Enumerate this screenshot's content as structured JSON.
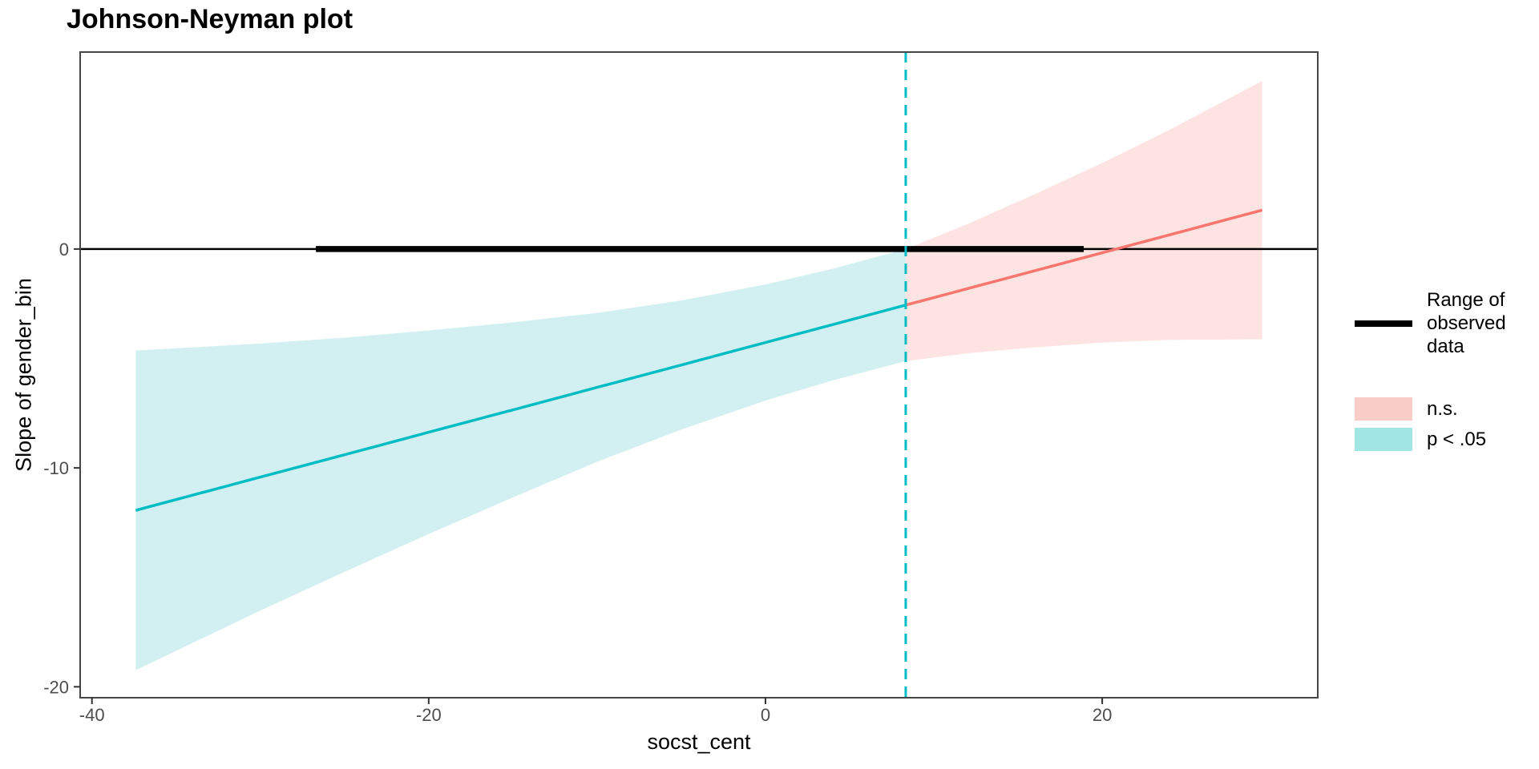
{
  "title": "Johnson-Neyman plot",
  "axes": {
    "x_label": "socst_cent",
    "y_label": "Slope of gender_bin"
  },
  "legend": {
    "items": [
      {
        "id": "observed-range",
        "type": "line",
        "color": "#000000",
        "label": "Range of observed data"
      },
      {
        "id": "ns",
        "type": "fill",
        "color": "#FACDC9",
        "label": "n.s."
      },
      {
        "id": "sig",
        "type": "fill",
        "color": "#A2E6E4",
        "label": "p < .05"
      }
    ]
  },
  "colors": {
    "red_line": "#F8766D",
    "teal_line": "#00BCC4",
    "pink_fill": "#FDE3E1",
    "cyan_fill": "#D2F0F1",
    "black_line": "#000000",
    "panel_border": "#454545",
    "tick_mark": "#333333",
    "tick_text": "#4D4D4D"
  },
  "chart_data": {
    "type": "area",
    "title": "Johnson-Neyman plot",
    "xlabel": "socst_cent",
    "ylabel": "Slope of gender_bin",
    "xlim": [
      -40.7,
      32.8
    ],
    "ylim": [
      -20.5,
      9.0
    ],
    "x_ticks": {
      "values": [
        -40,
        -20,
        0,
        20
      ],
      "labels": [
        "-40",
        "-20",
        "0",
        "20"
      ]
    },
    "y_ticks": {
      "values": [
        0,
        -10,
        -20
      ],
      "labels": [
        "0",
        "-10",
        "-20"
      ]
    },
    "grid": false,
    "legend_position": "right",
    "zero_line_y": 0,
    "jn_point_x": 8.33,
    "observed_range": {
      "x_start": -26.7,
      "x_end": 18.9,
      "y": 0
    },
    "regions": [
      {
        "id": "sig",
        "name": "p < .05",
        "significant": true,
        "x": [
          -37.4,
          -30,
          -25,
          -20,
          -15,
          -10,
          -5,
          0,
          4,
          8.33
        ],
        "line": [
          -11.94,
          -10.42,
          -9.4,
          -8.37,
          -7.35,
          -6.32,
          -5.3,
          -4.27,
          -3.45,
          -2.56
        ],
        "upper": [
          -4.64,
          -4.32,
          -4.05,
          -3.72,
          -3.35,
          -2.92,
          -2.35,
          -1.62,
          -0.9,
          0.0
        ],
        "lower": [
          -19.24,
          -16.52,
          -14.75,
          -13.02,
          -11.35,
          -9.72,
          -8.25,
          -6.92,
          -6.0,
          -5.12
        ]
      },
      {
        "id": "ns",
        "name": "n.s.",
        "significant": false,
        "x": [
          8.33,
          12,
          16,
          20,
          24,
          29.5
        ],
        "line": [
          -2.56,
          -1.81,
          -0.99,
          -0.17,
          0.65,
          1.78
        ],
        "upper": [
          0.0,
          1.14,
          2.51,
          3.93,
          5.45,
          7.68
        ],
        "lower": [
          -5.12,
          -4.76,
          -4.49,
          -4.27,
          -4.15,
          -4.12
        ]
      }
    ]
  }
}
